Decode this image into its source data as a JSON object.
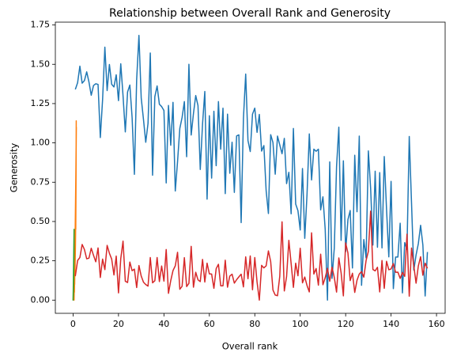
{
  "chart_data": {
    "type": "line",
    "title": "Relationship between Overall Rank and Generosity",
    "xlabel": "Overall rank",
    "ylabel": "Generosity",
    "xlim": [
      -7.8,
      163.8
    ],
    "ylim": [
      -0.084,
      1.768
    ],
    "xticks": [
      0,
      20,
      40,
      60,
      80,
      100,
      120,
      140,
      160
    ],
    "yticks": [
      {
        "value": 0,
        "label": "0.00"
      },
      {
        "value": 0.25,
        "label": "0.25"
      },
      {
        "value": 0.5,
        "label": "0.50"
      },
      {
        "value": 0.75,
        "label": "0.75"
      },
      {
        "value": 1,
        "label": "1.00"
      },
      {
        "value": 1.25,
        "label": "1.25"
      },
      {
        "value": 1.5,
        "label": "1.50"
      },
      {
        "value": 1.75,
        "label": "1.75"
      }
    ],
    "grid": false,
    "x": [
      1,
      2,
      3,
      4,
      5,
      6,
      7,
      8,
      9,
      10,
      11,
      12,
      13,
      14,
      15,
      16,
      17,
      18,
      19,
      20,
      21,
      22,
      23,
      24,
      25,
      26,
      27,
      28,
      29,
      30,
      31,
      32,
      33,
      34,
      35,
      36,
      37,
      38,
      39,
      40,
      41,
      42,
      43,
      44,
      45,
      46,
      47,
      48,
      49,
      50,
      51,
      52,
      53,
      54,
      55,
      56,
      57,
      58,
      59,
      60,
      61,
      62,
      63,
      64,
      65,
      66,
      67,
      68,
      69,
      70,
      71,
      72,
      73,
      74,
      75,
      76,
      77,
      78,
      79,
      80,
      81,
      82,
      83,
      84,
      85,
      86,
      87,
      88,
      89,
      90,
      91,
      92,
      93,
      94,
      95,
      96,
      97,
      98,
      99,
      100,
      101,
      102,
      103,
      104,
      105,
      106,
      107,
      108,
      109,
      110,
      111,
      112,
      113,
      114,
      115,
      116,
      117,
      118,
      119,
      120,
      121,
      122,
      123,
      124,
      125,
      126,
      127,
      128,
      129,
      130,
      131,
      132,
      133,
      134,
      135,
      136,
      137,
      138,
      139,
      140,
      141,
      142,
      143,
      144,
      145,
      146,
      147,
      148,
      149,
      150,
      151,
      152,
      153,
      154,
      155,
      156
    ],
    "series": [
      {
        "color": "#1f77b4",
        "values": [
          1.34,
          1.383,
          1.488,
          1.38,
          1.396,
          1.452,
          1.387,
          1.303,
          1.365,
          1.376,
          1.372,
          1.034,
          1.276,
          1.609,
          1.333,
          1.499,
          1.373,
          1.356,
          1.433,
          1.269,
          1.503,
          1.3,
          1.07,
          1.324,
          1.368,
          1.159,
          0.8,
          1.403,
          1.684,
          1.286,
          1.149,
          1.004,
          1.124,
          1.572,
          0.794,
          1.294,
          1.362,
          1.246,
          1.231,
          1.206,
          0.745,
          1.238,
          0.985,
          1.258,
          0.694,
          0.882,
          1.092,
          1.162,
          1.263,
          0.912,
          1.5,
          1.05,
          1.187,
          1.301,
          1.237,
          0.831,
          1.12,
          1.327,
          0.642,
          1.173,
          0.776,
          1.201,
          0.855,
          1.263,
          0.96,
          1.221,
          0.677,
          1.183,
          0.807,
          1.004,
          0.685,
          1.044,
          1.051,
          0.493,
          1.155,
          1.438,
          1.015,
          0.945,
          1.183,
          1.221,
          1.067,
          1.181,
          0.948,
          0.983,
          0.696,
          0.551,
          1.052,
          1.002,
          0.801,
          1.043,
          0.987,
          0.931,
          1.029,
          0.741,
          0.813,
          0.549,
          1.092,
          0.611,
          0.569,
          0.446,
          0.837,
          0.393,
          0.673,
          1.057,
          0.764,
          0.96,
          0.947,
          0.96,
          0.574,
          0.657,
          0.45,
          0.0,
          0.879,
          0.138,
          0.331,
          0.85,
          1.1,
          0.38,
          0.886,
          0.308,
          0.512,
          0.57,
          0.204,
          0.921,
          0.562,
          1.043,
          0.094,
          0.385,
          0.268,
          0.949,
          0.71,
          0.35,
          0.82,
          0.336,
          0.811,
          0.332,
          0.913,
          0.578,
          0.275,
          0.755,
          0.073,
          0.274,
          0.274,
          0.489,
          0.046,
          0.366,
          0.323,
          1.041,
          0.619,
          0.191,
          0.287,
          0.359,
          0.476,
          0.35,
          0.026,
          0.306
        ]
      },
      {
        "color": "#ff7f0e",
        "x": [
          1.19,
          1.32,
          1.4,
          1.25,
          1.05,
          0.82,
          1.45,
          1.1,
          0.95,
          1.3,
          0.6,
          1.22,
          1.38,
          0.88,
          1.15,
          0.45,
          1.28,
          1.02,
          1.35,
          0.7,
          1.12,
          1.42,
          0.92,
          1.2
        ],
        "values": [
          0.45,
          0.8,
          1.14,
          0.6,
          0.35,
          0.15,
          1.1,
          0.52,
          0.3,
          0.88,
          0.05,
          0.7,
          1.02,
          0.25,
          0.62,
          0.0,
          0.75,
          0.4,
          0.96,
          0.1,
          0.55,
          1.08,
          0.28,
          0.66
        ]
      },
      {
        "color": "#2ca02c",
        "x": [
          0.35,
          0.42,
          0.2,
          0.1,
          0.3,
          0.45,
          0.05,
          0.25,
          0.38,
          0.15,
          0.32,
          0.0,
          0.28,
          0.4,
          0.18,
          0.22,
          0.36,
          0.08,
          0.27,
          0.33
        ],
        "values": [
          0.25,
          0.38,
          0.12,
          0.05,
          0.2,
          0.45,
          0.02,
          0.15,
          0.3,
          0.08,
          0.22,
          0.0,
          0.18,
          0.4,
          0.1,
          0.13,
          0.28,
          0.03,
          0.16,
          0.24
        ]
      },
      {
        "color": "#d62728",
        "values": [
          0.153,
          0.252,
          0.271,
          0.354,
          0.322,
          0.263,
          0.267,
          0.33,
          0.285,
          0.244,
          0.332,
          0.144,
          0.261,
          0.194,
          0.348,
          0.298,
          0.261,
          0.16,
          0.28,
          0.046,
          0.264,
          0.375,
          0.12,
          0.112,
          0.242,
          0.187,
          0.197,
          0.08,
          0.22,
          0.153,
          0.114,
          0.099,
          0.089,
          0.271,
          0.11,
          0.123,
          0.271,
          0.118,
          0.217,
          0.121,
          0.322,
          0.043,
          0.124,
          0.188,
          0.218,
          0.304,
          0.069,
          0.088,
          0.27,
          0.086,
          0.107,
          0.342,
          0.082,
          0.177,
          0.129,
          0.118,
          0.259,
          0.115,
          0.235,
          0.167,
          0.166,
          0.075,
          0.2,
          0.228,
          0.091,
          0.091,
          0.254,
          0.082,
          0.153,
          0.165,
          0.108,
          0.13,
          0.148,
          0.165,
          0.084,
          0.275,
          0.136,
          0.281,
          0.066,
          0.271,
          0.115,
          0.0,
          0.221,
          0.205,
          0.218,
          0.313,
          0.245,
          0.064,
          0.032,
          0.028,
          0.152,
          0.498,
          0.058,
          0.15,
          0.38,
          0.233,
          0.081,
          0.235,
          0.155,
          0.33,
          0.11,
          0.147,
          0.093,
          0.052,
          0.428,
          0.166,
          0.201,
          0.095,
          0.292,
          0.098,
          0.143,
          0.202,
          0.12,
          0.209,
          0.144,
          0.051,
          0.268,
          0.174,
          0.027,
          0.364,
          0.3,
          0.124,
          0.171,
          0.049,
          0.126,
          0.166,
          0.182,
          0.146,
          0.252,
          0.31,
          0.566,
          0.195,
          0.186,
          0.209,
          0.052,
          0.252,
          0.075,
          0.247,
          0.193,
          0.198,
          0.233,
          0.177,
          0.178,
          0.138,
          0.176,
          0.151,
          0.419,
          0.025,
          0.331,
          0.218,
          0.108,
          0.217,
          0.276,
          0.158,
          0.235,
          0.202
        ]
      }
    ]
  }
}
